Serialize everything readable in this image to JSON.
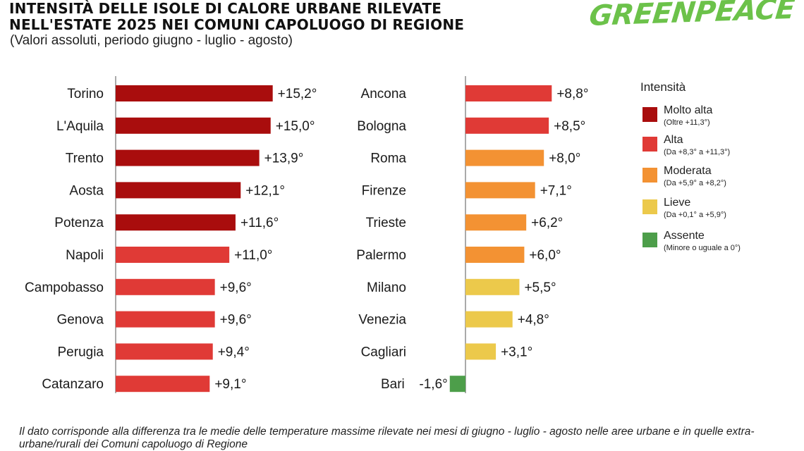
{
  "header": {
    "title_line1": "INTENSITÀ DELLE ISOLE DI CALORE URBANE RILEVATE",
    "title_line2": "NELL'ESTATE 2025 NEI COMUNI CAPOLUOGO DI REGIONE",
    "subtitle": "(Valori assoluti, periodo giugno - luglio - agosto)"
  },
  "logo": {
    "text": "GREENPEACE"
  },
  "colors": {
    "molto_alta": "#a90d0d",
    "alta": "#e03a36",
    "moderata": "#f39233",
    "lieve": "#ecc94b",
    "assente": "#4d9e4a"
  },
  "legend": {
    "title": "Intensità",
    "items": [
      {
        "key": "molto_alta",
        "label": "Molto alta",
        "range": "(Oltre +11,3°)"
      },
      {
        "key": "alta",
        "label": "Alta",
        "range": "(Da +8,3° a +11,3°)"
      },
      {
        "key": "moderata",
        "label": "Moderata",
        "range": "(Da +5,9° a +8,2°)"
      },
      {
        "key": "lieve",
        "label": "Lieve",
        "range": "(Da +0,1° a +5,9°)"
      },
      {
        "key": "assente",
        "label": "Assente",
        "range": "(Minore o uguale a  0°)"
      }
    ]
  },
  "chart_data": {
    "type": "bar",
    "orientation": "horizontal",
    "unit": "°",
    "panels": [
      {
        "categories": [
          "Torino",
          "L'Aquila",
          "Trento",
          "Aosta",
          "Potenza",
          "Napoli",
          "Campobasso",
          "Genova",
          "Perugia",
          "Catanzaro"
        ],
        "values": [
          15.2,
          15.0,
          13.9,
          12.1,
          11.6,
          11.0,
          9.6,
          9.6,
          9.4,
          9.1
        ],
        "labels": [
          "+15,2°",
          "+15,0°",
          "+13,9°",
          "+12,1°",
          "+11,6°",
          "+11,0°",
          "+9,6°",
          "+9,6°",
          "+9,4°",
          "+9,1°"
        ],
        "classes": [
          "molto_alta",
          "molto_alta",
          "molto_alta",
          "molto_alta",
          "molto_alta",
          "alta",
          "alta",
          "alta",
          "alta",
          "alta"
        ]
      },
      {
        "categories": [
          "Ancona",
          "Bologna",
          "Roma",
          "Firenze",
          "Trieste",
          "Palermo",
          "Milano",
          "Venezia",
          "Cagliari",
          "Bari"
        ],
        "values": [
          8.8,
          8.5,
          8.0,
          7.1,
          6.2,
          6.0,
          5.5,
          4.8,
          3.1,
          -1.6
        ],
        "labels": [
          "+8,8°",
          "+8,5°",
          "+8,0°",
          "+7,1°",
          "+6,2°",
          "+6,0°",
          "+5,5°",
          "+4,8°",
          "+3,1°",
          "-1,6°"
        ],
        "classes": [
          "alta",
          "alta",
          "moderata",
          "moderata",
          "moderata",
          "moderata",
          "lieve",
          "lieve",
          "lieve",
          "assente"
        ]
      }
    ]
  },
  "footnote": "Il dato corrisponde alla differenza tra le medie delle temperature massime rilevate nei mesi di giugno - luglio - agosto nelle aree urbane e in quelle extra-urbane/rurali dei Comuni capoluogo di Regione"
}
